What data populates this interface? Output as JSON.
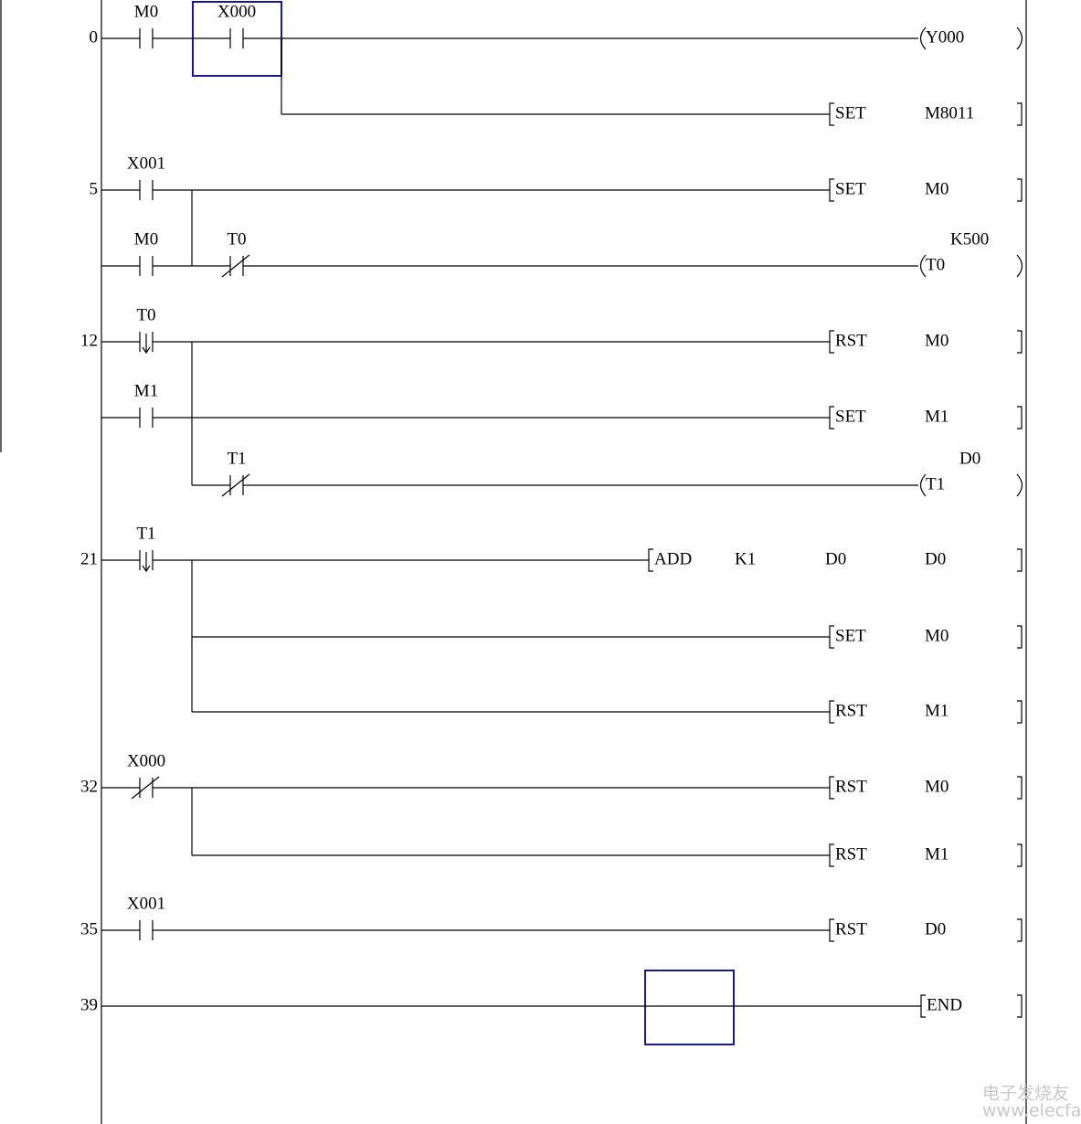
{
  "steps": [
    "0",
    "5",
    "12",
    "21",
    "32",
    "35",
    "39"
  ],
  "contacts": [
    "M0",
    "X000",
    "X001",
    "M0",
    "T0",
    "T0",
    "M1",
    "T1",
    "T1",
    "X000",
    "X001"
  ],
  "outputs": [
    [
      "Y000"
    ],
    [
      "SET",
      "M8011"
    ],
    [
      "SET",
      "M0"
    ],
    [
      "T0",
      "K500"
    ],
    [
      "RST",
      "M0"
    ],
    [
      "SET",
      "M1"
    ],
    [
      "T1",
      "D0"
    ],
    [
      "ADD",
      "K1",
      "D0",
      "D0"
    ],
    [
      "SET",
      "M0"
    ],
    [
      "RST",
      "M1"
    ],
    [
      "RST",
      "M0"
    ],
    [
      "RST",
      "M1"
    ],
    [
      "RST",
      "D0"
    ],
    [
      "END"
    ]
  ],
  "watermark": {
    "name": "电子发烧友",
    "url": "www.elecfans.com"
  }
}
